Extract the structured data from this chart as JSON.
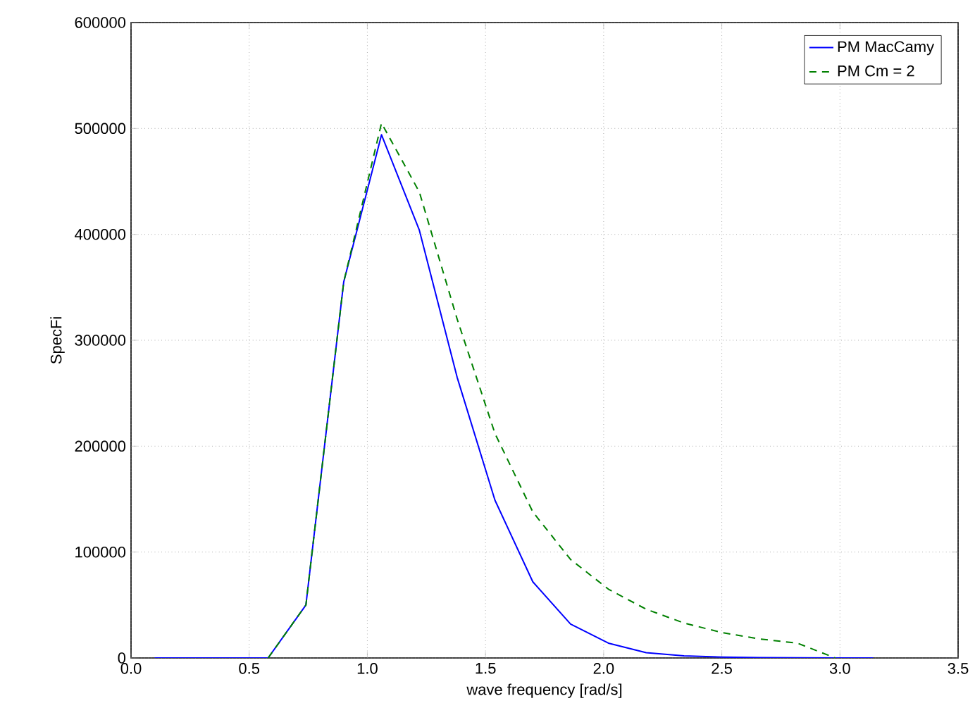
{
  "chart_data": {
    "type": "line",
    "xlabel": "wave frequency [rad/s]",
    "ylabel": "SpecFi",
    "x": [
      0.1,
      0.26,
      0.42,
      0.58,
      0.74,
      0.9,
      1.06,
      1.22,
      1.38,
      1.54,
      1.7,
      1.86,
      2.02,
      2.18,
      2.34,
      2.5,
      2.66,
      2.82,
      2.98,
      3.14
    ],
    "series": [
      {
        "name": "PM MacCamy",
        "color": "#0000ff",
        "line_style": "solid",
        "values": [
          0,
          0,
          0,
          0,
          50000,
          355000,
          494000,
          404000,
          265000,
          149000,
          72000,
          32000,
          14000,
          5000,
          2000,
          800,
          300,
          100,
          0,
          0
        ]
      },
      {
        "name": "PM Cm = 2",
        "color": "#008000",
        "line_style": "dashed",
        "values": [
          null,
          null,
          null,
          0,
          50000,
          355000,
          505000,
          440000,
          320000,
          212000,
          138000,
          93000,
          65000,
          46000,
          33000,
          24000,
          18000,
          14000,
          0,
          null
        ]
      }
    ],
    "xlim": [
      0,
      3.5
    ],
    "ylim": [
      0,
      600000
    ],
    "xticks": [
      {
        "value": 0,
        "label": "0.0"
      },
      0.5,
      {
        "value": 1,
        "label": "1.0"
      },
      1.5,
      {
        "value": 2,
        "label": "2.0"
      },
      2.5,
      {
        "value": 3,
        "label": "3.0"
      },
      3.5
    ],
    "yticks": [
      0,
      100000,
      200000,
      300000,
      400000,
      500000,
      600000
    ],
    "grid": true,
    "legend": "top right",
    "marker": "none"
  }
}
